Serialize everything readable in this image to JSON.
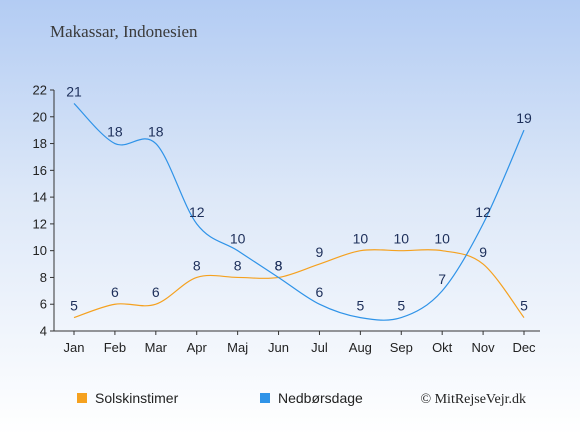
{
  "chart_data": {
    "type": "line",
    "title": "Makassar, Indonesien",
    "categories": [
      "Jan",
      "Feb",
      "Mar",
      "Apr",
      "Maj",
      "Jun",
      "Jul",
      "Aug",
      "Sep",
      "Okt",
      "Nov",
      "Dec"
    ],
    "ylim": [
      4,
      22
    ],
    "yticks": [
      4,
      6,
      8,
      10,
      12,
      14,
      16,
      18,
      20,
      22
    ],
    "grid": false,
    "legend_position": "bottom",
    "series": [
      {
        "name": "Solskinstimer",
        "color": "#f5a11f",
        "values": [
          5,
          6,
          6,
          8,
          8,
          8,
          9,
          10,
          10,
          10,
          9,
          5
        ]
      },
      {
        "name": "Nedbørsdage",
        "color": "#2f93e8",
        "values": [
          21,
          18,
          18,
          12,
          10,
          8,
          6,
          5,
          5,
          7,
          12,
          19
        ]
      }
    ]
  },
  "copyright": "© MitRejseVejr.dk"
}
